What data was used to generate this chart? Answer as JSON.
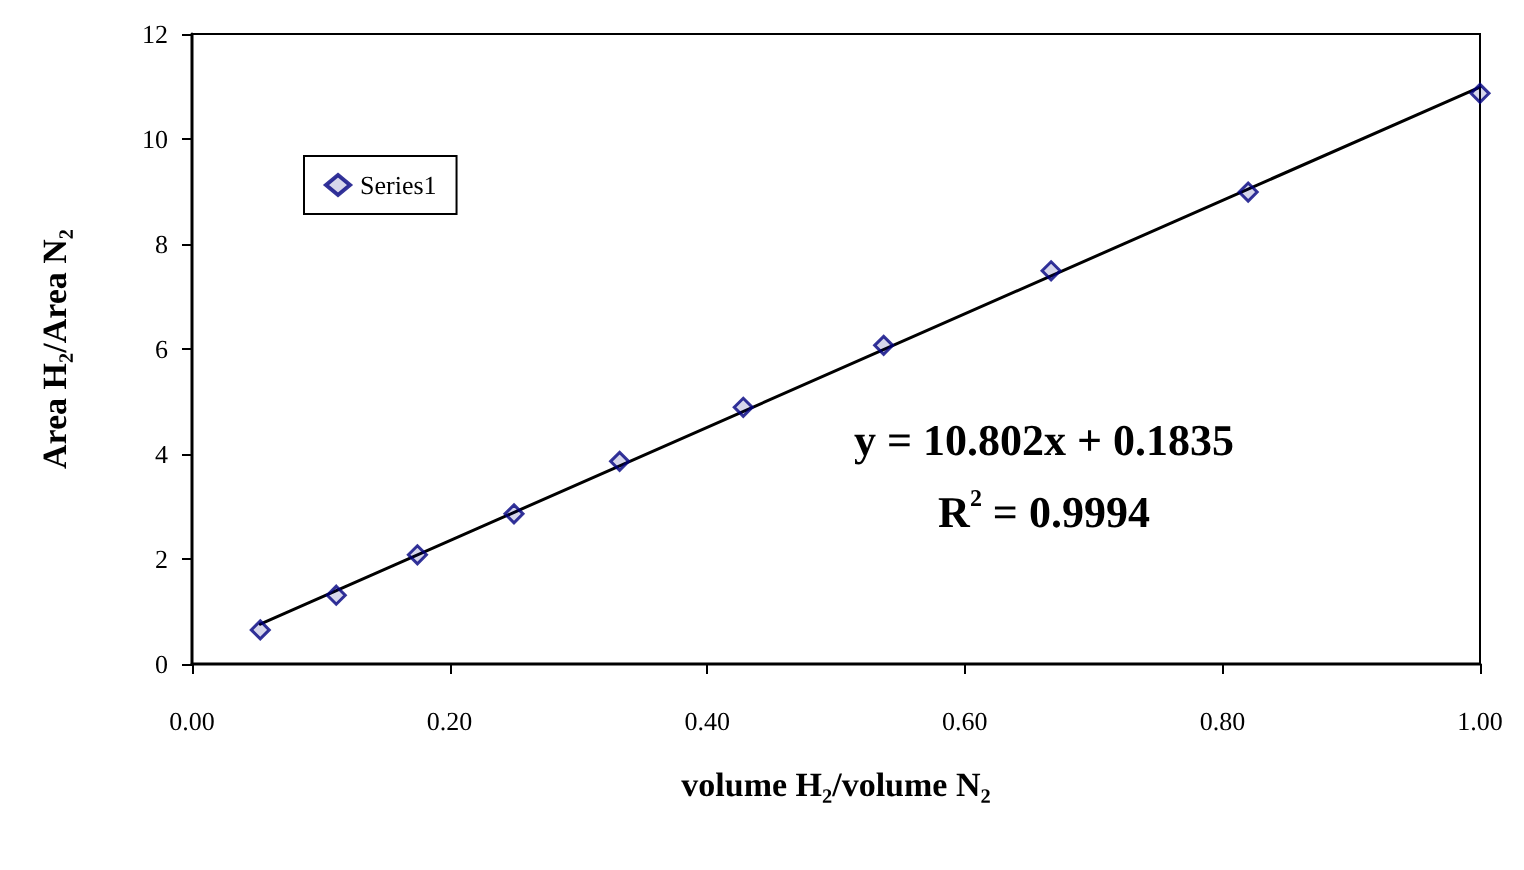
{
  "chart_data": {
    "type": "scatter",
    "xlabel": "volume H₂/volume N₂",
    "ylabel": "Area H₂/Area N₂",
    "series": [
      {
        "name": "Series1",
        "color": "#000080",
        "marker": "diamond",
        "x": [
          0.053,
          0.112,
          0.175,
          0.25,
          0.332,
          0.428,
          0.537,
          0.667,
          0.82,
          1.0
        ],
        "values": [
          0.65,
          1.31,
          2.08,
          2.86,
          3.86,
          4.89,
          6.07,
          7.49,
          8.99,
          10.87
        ]
      },
      {
        "type": "line",
        "color": "#000000",
        "marker": "none",
        "line_style": "solid",
        "x": [
          0.053,
          1.0
        ],
        "values": [
          0.76,
          10.99
        ]
      }
    ],
    "annotations": [
      "y = 10.802x + 0.1835",
      "R$^{2}$ = 0.9994"
    ],
    "xlim": [
      0,
      1
    ],
    "xticks": [
      {
        "value": 0,
        "label": "0.00"
      },
      {
        "value": 0.2,
        "label": "0.20"
      },
      {
        "value": 0.4,
        "label": "0.40"
      },
      {
        "value": 0.6,
        "label": "0.60"
      },
      {
        "value": 0.8,
        "label": "0.80"
      },
      {
        "value": 1,
        "label": "1.00"
      }
    ],
    "ylim": [
      0,
      12
    ],
    "yticks": [
      0,
      2,
      4,
      6,
      8,
      10,
      12
    ],
    "grid": false,
    "legend": "top left"
  }
}
